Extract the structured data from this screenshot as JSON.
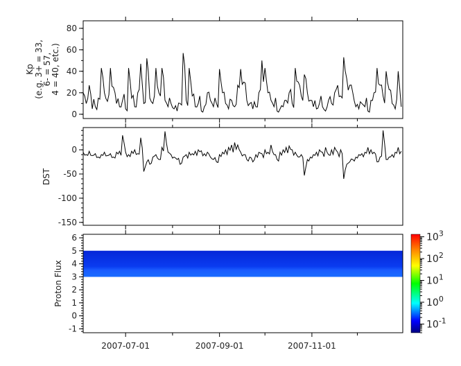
{
  "chart_data": [
    {
      "type": "line",
      "ylabel": [
        "Kp",
        "(e.g. 3+ = 33,",
        "6- = 57,",
        "4 = 40, etc.)"
      ],
      "x_start": "2007-06-03",
      "x_step_days": 2,
      "xlim": [
        "2007-06-03",
        "2007-12-31"
      ],
      "ylim": [
        -4,
        87
      ],
      "yticks": [
        0,
        20,
        40,
        60,
        80
      ],
      "values": [
        20,
        10,
        27,
        5,
        7,
        15,
        43,
        20,
        12,
        43,
        25,
        10,
        7,
        13,
        5,
        43,
        15,
        7,
        20,
        47,
        10,
        52,
        15,
        10,
        43,
        20,
        43,
        13,
        7,
        10,
        5,
        3,
        10,
        57,
        13,
        43,
        17,
        7,
        10,
        3,
        7,
        20,
        13,
        7,
        10,
        42,
        20,
        10,
        5,
        13,
        7,
        27,
        42,
        30,
        13,
        10,
        5,
        7,
        20,
        50,
        43,
        20,
        13,
        7,
        3,
        5,
        7,
        13,
        20,
        10,
        43,
        30,
        17,
        37,
        20,
        13,
        7,
        5,
        10,
        7,
        3,
        13,
        10,
        20,
        27,
        17,
        53,
        33,
        27,
        20,
        7,
        5,
        10,
        7,
        3,
        13,
        20,
        43,
        27,
        17,
        40,
        23,
        10,
        5,
        40,
        7
      ],
      "color": "#000000"
    },
    {
      "type": "line",
      "ylabel": "DST",
      "x_start": "2007-06-03",
      "x_step_days": 2,
      "xlim": [
        "2007-06-03",
        "2007-12-31"
      ],
      "ylim": [
        -156,
        46
      ],
      "yticks": [
        0,
        -50,
        -100,
        -150
      ],
      "values": [
        -5,
        -10,
        -3,
        -12,
        -8,
        -15,
        -10,
        -5,
        -12,
        -8,
        -15,
        -5,
        -3,
        30,
        -5,
        -10,
        -3,
        0,
        -8,
        25,
        -45,
        -25,
        -30,
        -15,
        -10,
        -20,
        5,
        38,
        -5,
        -10,
        -15,
        -20,
        -30,
        -15,
        -10,
        -5,
        -8,
        -3,
        0,
        -2,
        -8,
        -5,
        -15,
        -20,
        -25,
        -10,
        -5,
        0,
        5,
        10,
        15,
        10,
        -5,
        -10,
        -20,
        -15,
        -25,
        -10,
        -5,
        -8,
        0,
        -5,
        10,
        -10,
        -20,
        -5,
        0,
        5,
        8,
        0,
        -5,
        -15,
        -10,
        -53,
        -20,
        -15,
        -10,
        -5,
        0,
        -5,
        5,
        -10,
        0,
        5,
        -5,
        0,
        -60,
        -30,
        -25,
        -20,
        -15,
        -10,
        -8,
        -5,
        5,
        0,
        -5,
        -25,
        -15,
        40,
        -20,
        -15,
        -10,
        -5,
        5,
        -3
      ],
      "color": "#000000"
    },
    {
      "type": "heatmap",
      "ylabel": "Proton Flux",
      "xlim": [
        "2007-06-03",
        "2007-12-31"
      ],
      "ylim": [
        -1.3,
        6.27
      ],
      "yticks": [
        -1,
        0,
        1,
        2,
        3,
        4,
        5,
        6
      ],
      "xticks": [
        "2007-07-01",
        "2007-09-01",
        "2007-11-01"
      ],
      "minor_xticks": [
        "2007-08-01",
        "2007-10-01",
        "2007-12-01"
      ],
      "bins": [
        {
          "y_range": [
            3,
            3.6
          ],
          "value": 0.3
        },
        {
          "y_range": [
            3.6,
            5
          ],
          "value": 0.1
        }
      ],
      "colorbar": {
        "scale": "log",
        "colormap": "jet",
        "zlim": [
          0.04,
          1300
        ],
        "tick_labels": [
          {
            "base": "10",
            "exp": "3",
            "value": 1000
          },
          {
            "base": "10",
            "exp": "2",
            "value": 100
          },
          {
            "base": "10",
            "exp": "1",
            "value": 10
          },
          {
            "base": "10",
            "exp": "0",
            "value": 1
          },
          {
            "base": "10",
            "exp": "-1",
            "value": 0.1
          }
        ]
      }
    }
  ]
}
